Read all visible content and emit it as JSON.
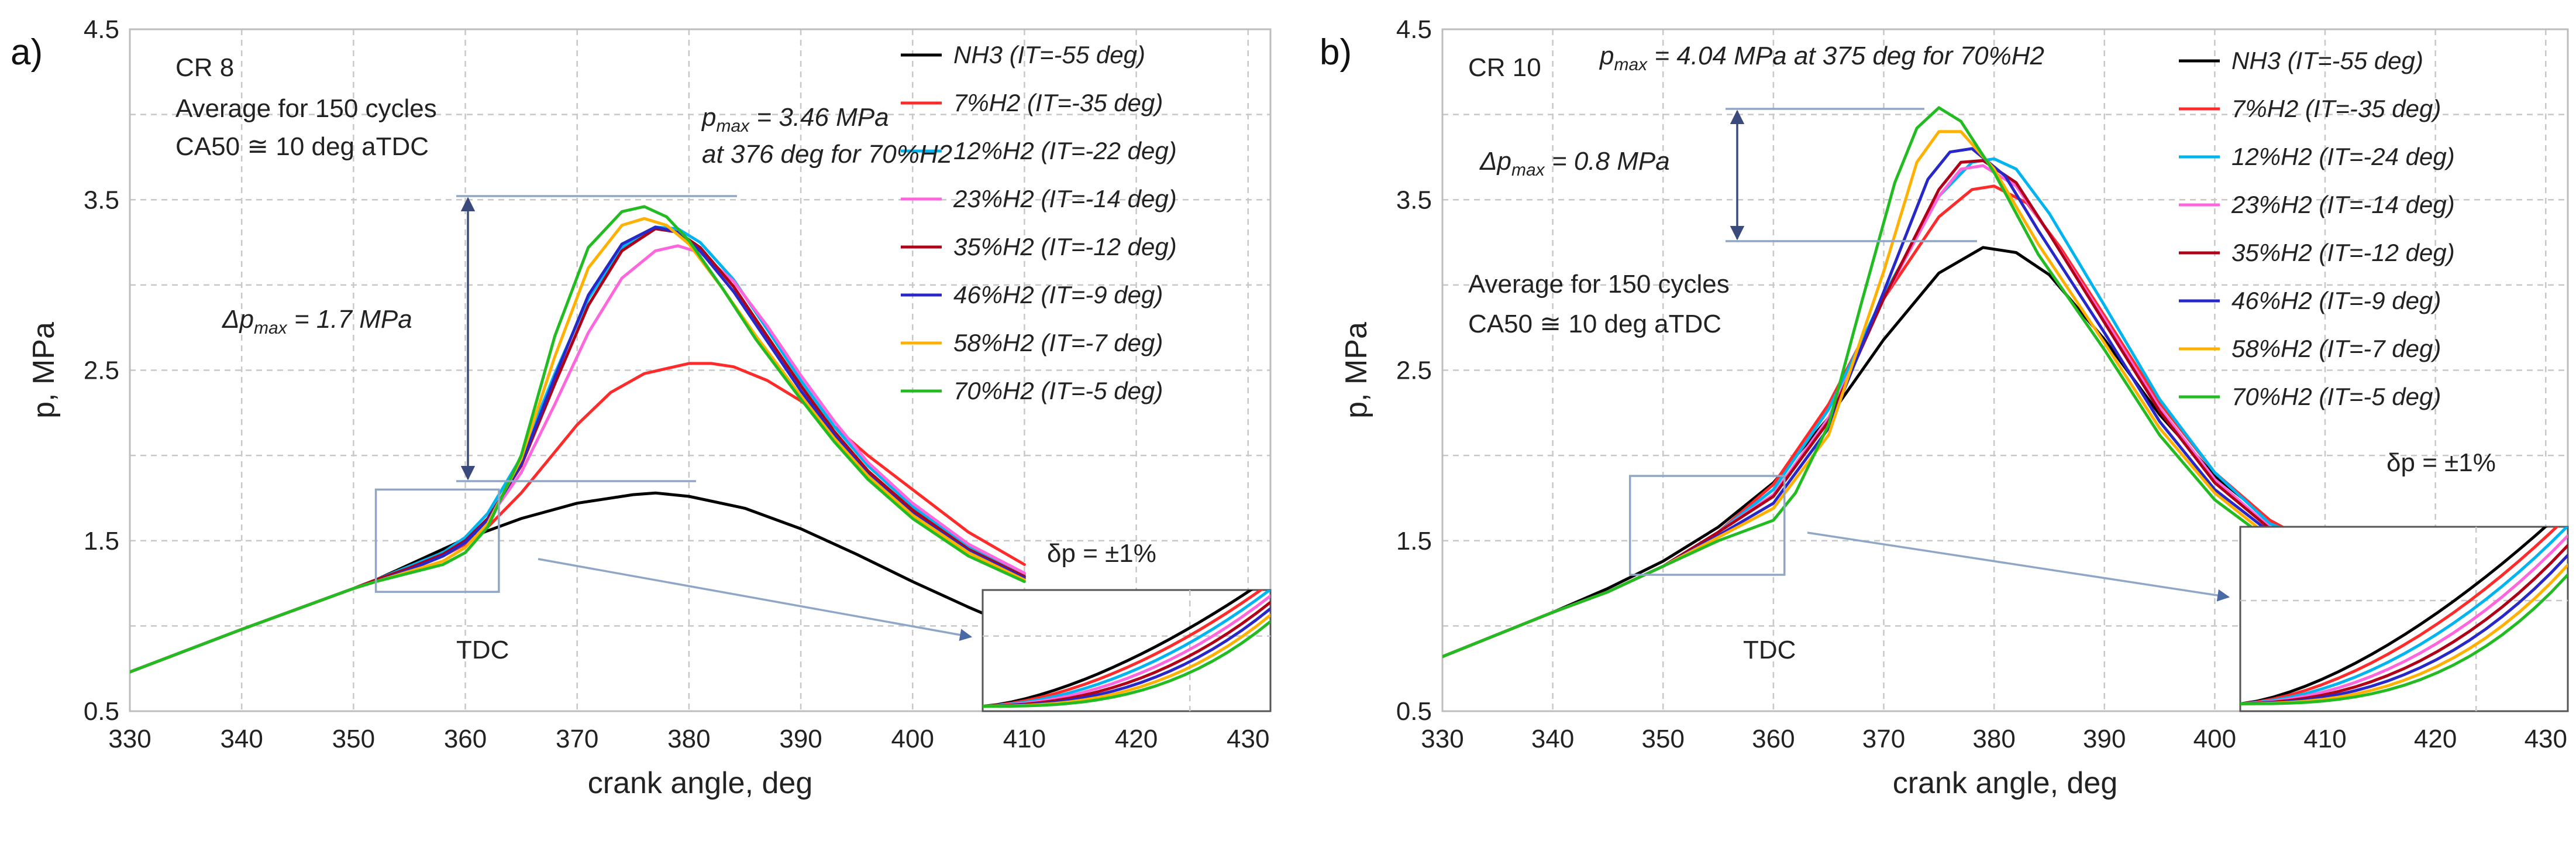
{
  "colors": {
    "NH3": "#000000",
    "7%H2": "#ff2a2a",
    "12%H2": "#00b4f0",
    "23%H2": "#ff66dd",
    "35%H2": "#b00018",
    "46%H2": "#2828c8",
    "58%H2": "#ffb000",
    "70%H2": "#22bb22",
    "arrow": "#3a4a7a",
    "helper": "#8fa6c6"
  },
  "chart_data": [
    {
      "type": "line",
      "panel_label": "a)",
      "title": "",
      "xlabel": "crank angle, deg",
      "ylabel": "p, MPa",
      "xlim": [
        330,
        432
      ],
      "ylim": [
        0.5,
        4.5
      ],
      "x_ticks": [
        "330",
        "340",
        "350",
        "360",
        "370",
        "380",
        "390",
        "400",
        "410",
        "420",
        "430"
      ],
      "y_ticks": [
        "0.5",
        "1.5",
        "2.5",
        "3.5",
        "4.5"
      ],
      "grid": true,
      "legend_position": "top-right",
      "annotations": {
        "case": "CR 8",
        "avg": "Average for 150 cycles",
        "ca50": "CA50 ≅ 10 deg aTDC",
        "pmax_line1": "pmax = 3.46 MPa",
        "pmax_line2": "at 376 deg for 70%H2",
        "dpmax": "Δpmax = 1.7 MPa",
        "tdc": "TDC",
        "dp": "δp = ±1%"
      },
      "series": [
        {
          "name": "NH3 (IT=-55 deg)",
          "key": "NH3",
          "x": [
            330,
            340,
            350,
            352,
            355,
            360,
            365,
            370,
            375,
            377,
            380,
            385,
            390,
            395,
            400,
            405,
            410
          ],
          "y": [
            0.73,
            0.98,
            1.22,
            1.27,
            1.36,
            1.51,
            1.63,
            1.72,
            1.77,
            1.78,
            1.76,
            1.69,
            1.57,
            1.42,
            1.26,
            1.11,
            0.97
          ]
        },
        {
          "name": "7%H2 (IT=-35 deg)",
          "key": "7%H2",
          "x": [
            330,
            340,
            350,
            352,
            355,
            358,
            360,
            362,
            365,
            368,
            370,
            373,
            376,
            380,
            382,
            384,
            387,
            390,
            393,
            396,
            400,
            405,
            410
          ],
          "y": [
            0.73,
            0.98,
            1.22,
            1.27,
            1.34,
            1.41,
            1.48,
            1.58,
            1.78,
            2.02,
            2.18,
            2.37,
            2.48,
            2.54,
            2.54,
            2.52,
            2.44,
            2.32,
            2.17,
            2.0,
            1.8,
            1.55,
            1.36
          ]
        },
        {
          "name": "12%H2 (IT=-22 deg)",
          "key": "12%H2",
          "x": [
            330,
            340,
            350,
            352,
            355,
            358,
            360,
            362,
            365,
            368,
            371,
            374,
            377,
            379,
            381,
            384,
            387,
            390,
            393,
            396,
            400,
            405,
            410
          ],
          "y": [
            0.73,
            0.98,
            1.22,
            1.27,
            1.35,
            1.43,
            1.52,
            1.66,
            1.99,
            2.48,
            2.92,
            3.22,
            3.34,
            3.33,
            3.25,
            3.03,
            2.74,
            2.44,
            2.17,
            1.94,
            1.7,
            1.47,
            1.3
          ]
        },
        {
          "name": "23%H2 (IT=-14 deg)",
          "key": "23%H2",
          "x": [
            330,
            340,
            350,
            352,
            355,
            358,
            360,
            362,
            365,
            368,
            371,
            374,
            377,
            379,
            381,
            384,
            387,
            390,
            393,
            396,
            400,
            405,
            410
          ],
          "y": [
            0.73,
            0.98,
            1.22,
            1.27,
            1.34,
            1.42,
            1.5,
            1.62,
            1.9,
            2.3,
            2.72,
            3.04,
            3.2,
            3.23,
            3.19,
            3.02,
            2.76,
            2.47,
            2.2,
            1.96,
            1.72,
            1.48,
            1.31
          ]
        },
        {
          "name": "35%H2 (IT=-12 deg)",
          "key": "35%H2",
          "x": [
            330,
            340,
            350,
            352,
            355,
            358,
            360,
            362,
            365,
            368,
            371,
            374,
            377,
            379,
            381,
            384,
            387,
            390,
            393,
            396,
            400,
            405,
            410
          ],
          "y": [
            0.73,
            0.98,
            1.22,
            1.27,
            1.34,
            1.42,
            1.5,
            1.63,
            1.94,
            2.42,
            2.88,
            3.2,
            3.33,
            3.31,
            3.22,
            2.99,
            2.7,
            2.41,
            2.14,
            1.91,
            1.68,
            1.45,
            1.29
          ]
        },
        {
          "name": "46%H2 (IT=-9 deg)",
          "key": "46%H2",
          "x": [
            330,
            340,
            350,
            352,
            355,
            358,
            360,
            362,
            365,
            368,
            371,
            374,
            377,
            379,
            381,
            384,
            387,
            390,
            393,
            396,
            400,
            405,
            410
          ],
          "y": [
            0.73,
            0.98,
            1.22,
            1.26,
            1.33,
            1.41,
            1.49,
            1.62,
            1.95,
            2.46,
            2.94,
            3.24,
            3.34,
            3.31,
            3.2,
            2.96,
            2.67,
            2.38,
            2.12,
            1.89,
            1.66,
            1.44,
            1.28
          ]
        },
        {
          "name": "58%H2 (IT=-7 deg)",
          "key": "58%H2",
          "x": [
            330,
            340,
            350,
            352,
            355,
            358,
            360,
            362,
            365,
            368,
            371,
            374,
            376,
            378,
            380,
            383,
            386,
            390,
            393,
            396,
            400,
            405,
            410
          ],
          "y": [
            0.73,
            0.98,
            1.22,
            1.26,
            1.32,
            1.38,
            1.46,
            1.6,
            1.98,
            2.58,
            3.1,
            3.35,
            3.39,
            3.35,
            3.24,
            2.98,
            2.7,
            2.35,
            2.1,
            1.88,
            1.65,
            1.43,
            1.27
          ]
        },
        {
          "name": "70%H2 (IT=-5 deg)",
          "key": "70%H2",
          "x": [
            330,
            340,
            350,
            352,
            355,
            358,
            360,
            362,
            365,
            368,
            371,
            374,
            376,
            378,
            380,
            383,
            386,
            390,
            393,
            396,
            400,
            405,
            410
          ],
          "y": [
            0.73,
            0.98,
            1.22,
            1.26,
            1.31,
            1.36,
            1.43,
            1.58,
            2.0,
            2.7,
            3.22,
            3.43,
            3.46,
            3.4,
            3.26,
            2.98,
            2.68,
            2.33,
            2.08,
            1.86,
            1.63,
            1.41,
            1.26
          ]
        }
      ]
    },
    {
      "type": "line",
      "panel_label": "b)",
      "title": "",
      "xlabel": "crank angle, deg",
      "ylabel": "p, MPa",
      "xlim": [
        330,
        432
      ],
      "ylim": [
        0.5,
        4.5
      ],
      "x_ticks": [
        "330",
        "340",
        "350",
        "360",
        "370",
        "380",
        "390",
        "400",
        "410",
        "420",
        "430"
      ],
      "y_ticks": [
        "0.5",
        "1.5",
        "2.5",
        "3.5",
        "4.5"
      ],
      "grid": true,
      "legend_position": "top-right",
      "annotations": {
        "case": "CR 10",
        "avg": "Average for 150 cycles",
        "ca50": "CA50 ≅ 10 deg aTDC",
        "pmax_line1": "pmax = 4.04 MPa at 375 deg for 70%H2",
        "dpmax": "Δpmax = 0.8 MPa",
        "tdc": "TDC",
        "dp": "δp = ±1%"
      },
      "series": [
        {
          "name": "NH3 (IT=-55 deg)",
          "key": "NH3",
          "x": [
            330,
            340,
            345,
            350,
            355,
            360,
            365,
            370,
            375,
            379,
            382,
            385,
            390,
            395,
            400,
            405,
            407
          ],
          "y": [
            0.82,
            1.08,
            1.22,
            1.38,
            1.58,
            1.84,
            2.22,
            2.68,
            3.07,
            3.22,
            3.19,
            3.06,
            2.68,
            2.24,
            1.88,
            1.62,
            1.55
          ]
        },
        {
          "name": "7%H2 (IT=-35 deg)",
          "key": "7%H2",
          "x": [
            330,
            340,
            345,
            350,
            355,
            360,
            365,
            370,
            375,
            378,
            380,
            383,
            386,
            390,
            395,
            400,
            405,
            407
          ],
          "y": [
            0.82,
            1.08,
            1.2,
            1.35,
            1.55,
            1.83,
            2.3,
            2.92,
            3.4,
            3.56,
            3.58,
            3.48,
            3.22,
            2.82,
            2.31,
            1.9,
            1.62,
            1.55
          ]
        },
        {
          "name": "12%H2 (IT=-24 deg)",
          "key": "12%H2",
          "x": [
            330,
            340,
            345,
            350,
            355,
            360,
            365,
            370,
            375,
            378,
            380,
            382,
            385,
            390,
            395,
            400,
            405,
            407
          ],
          "y": [
            0.82,
            1.08,
            1.2,
            1.35,
            1.55,
            1.8,
            2.27,
            2.94,
            3.52,
            3.72,
            3.74,
            3.68,
            3.42,
            2.88,
            2.33,
            1.9,
            1.6,
            1.55
          ]
        },
        {
          "name": "23%H2 (IT=-14 deg)",
          "key": "23%H2",
          "x": [
            330,
            340,
            345,
            350,
            355,
            360,
            365,
            370,
            375,
            377,
            379,
            382,
            385,
            390,
            395,
            400,
            405,
            407
          ],
          "y": [
            0.82,
            1.08,
            1.2,
            1.35,
            1.55,
            1.77,
            2.22,
            2.92,
            3.52,
            3.68,
            3.7,
            3.58,
            3.3,
            2.8,
            2.28,
            1.86,
            1.58,
            1.55
          ]
        },
        {
          "name": "35%H2 (IT=-12 deg)",
          "key": "35%H2",
          "x": [
            330,
            340,
            345,
            350,
            355,
            360,
            365,
            370,
            375,
            377,
            379,
            382,
            385,
            390,
            395,
            400,
            405,
            407
          ],
          "y": [
            0.82,
            1.08,
            1.2,
            1.35,
            1.55,
            1.76,
            2.2,
            2.92,
            3.56,
            3.72,
            3.73,
            3.6,
            3.3,
            2.78,
            2.26,
            1.84,
            1.57,
            1.55
          ]
        },
        {
          "name": "46%H2 (IT=-9 deg)",
          "key": "46%H2",
          "x": [
            330,
            340,
            345,
            350,
            355,
            360,
            365,
            370,
            374,
            376,
            378,
            381,
            384,
            390,
            395,
            400,
            405,
            407
          ],
          "y": [
            0.82,
            1.08,
            1.2,
            1.35,
            1.53,
            1.72,
            2.16,
            2.96,
            3.62,
            3.78,
            3.8,
            3.64,
            3.32,
            2.72,
            2.2,
            1.8,
            1.55,
            1.5
          ]
        },
        {
          "name": "58%H2 (IT=-7 deg)",
          "key": "58%H2",
          "x": [
            330,
            340,
            345,
            350,
            355,
            360,
            365,
            370,
            373,
            375,
            377,
            380,
            384,
            390,
            395,
            400,
            405,
            407
          ],
          "y": [
            0.82,
            1.08,
            1.2,
            1.35,
            1.52,
            1.69,
            2.12,
            3.08,
            3.72,
            3.9,
            3.9,
            3.68,
            3.24,
            2.66,
            2.16,
            1.78,
            1.52,
            1.48
          ]
        },
        {
          "name": "70%H2 (IT=-5 deg)",
          "key": "70%H2",
          "x": [
            330,
            340,
            345,
            350,
            355,
            360,
            362,
            365,
            368,
            371,
            373,
            375,
            377,
            380,
            384,
            390,
            395,
            400,
            405,
            407
          ],
          "y": [
            0.82,
            1.08,
            1.2,
            1.35,
            1.5,
            1.62,
            1.78,
            2.18,
            2.9,
            3.6,
            3.92,
            4.04,
            3.96,
            3.66,
            3.18,
            2.62,
            2.12,
            1.74,
            1.5,
            1.46
          ]
        }
      ]
    }
  ]
}
